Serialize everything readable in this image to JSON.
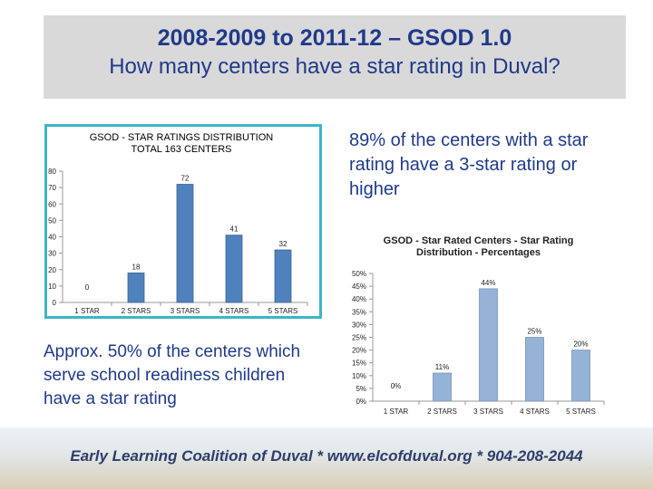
{
  "header": {
    "line1": "2008-2009 to 2011-12 – GSOD 1.0",
    "line2": "How many centers have a star rating in Duval?"
  },
  "notes": {
    "right": "89% of the centers with a star rating have a 3-star rating or higher",
    "left": "Approx. 50% of the centers which serve school readiness children have a star rating"
  },
  "footer": {
    "text": "Early Learning Coalition of Duval * www.elcofduval.org * 904-208-2044"
  },
  "colors": {
    "bar1": "#4f81bd",
    "bar2": "#95b3d7",
    "title": "#1f3a8a",
    "border": "#3fb4c8"
  },
  "chart_data": [
    {
      "type": "bar",
      "title_line1": "GSOD - STAR RATINGS DISTRIBUTION",
      "title_line2": "TOTAL 163 CENTERS",
      "categories": [
        "1 STAR",
        "2 STARS",
        "3 STARS",
        "4 STARS",
        "5 STARS"
      ],
      "values": [
        0,
        18,
        72,
        41,
        32
      ],
      "ylim": [
        0,
        80
      ],
      "yticks": [
        "0",
        "10",
        "20",
        "30",
        "40",
        "50",
        "60",
        "70",
        "80"
      ],
      "grid": false,
      "legend": "none"
    },
    {
      "type": "bar",
      "title": "GSOD - Star Rated Centers - Star Rating Distribution - Percentages",
      "categories": [
        "1 STAR",
        "2 STARS",
        "3 STARS",
        "4 STARS",
        "5 STARS"
      ],
      "values": [
        0,
        11,
        44,
        25,
        20
      ],
      "labels": [
        "0%",
        "11%",
        "44%",
        "25%",
        "20%"
      ],
      "ylim": [
        0,
        50
      ],
      "yticks": [
        "0%",
        "5%",
        "10%",
        "15%",
        "20%",
        "25%",
        "30%",
        "35%",
        "40%",
        "45%",
        "50%"
      ],
      "grid": false,
      "legend": "none"
    }
  ]
}
